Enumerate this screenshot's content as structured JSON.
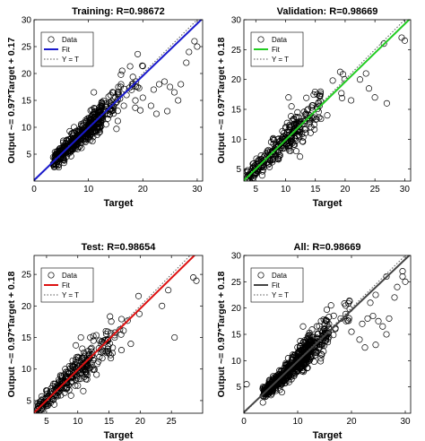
{
  "chart_data": [
    {
      "type": "scatter",
      "title": "Training: R=0.98672",
      "xlabel": "Target",
      "ylabel": "Output ~= 0.97*Target + 0.17",
      "xlim": [
        0,
        31
      ],
      "ylim": [
        0,
        30
      ],
      "xticks": [
        0,
        10,
        20,
        30
      ],
      "yticks": [
        5,
        10,
        15,
        20,
        25,
        30
      ],
      "fit": {
        "slope": 0.97,
        "intercept": 0.17,
        "color": "#1a1acc"
      },
      "legend": {
        "position": "top-left",
        "entries": [
          "Data",
          "Fit",
          "Y = T"
        ]
      },
      "outliers": [
        [
          15.5,
          17.5
        ],
        [
          16.2,
          20.5
        ],
        [
          17,
          16
        ],
        [
          18,
          18
        ],
        [
          19,
          17.5
        ],
        [
          20,
          15.5
        ],
        [
          21.5,
          14
        ],
        [
          22,
          17
        ],
        [
          23,
          18
        ],
        [
          24,
          18.5
        ],
        [
          25,
          17.5
        ],
        [
          25.8,
          16.5
        ],
        [
          26.5,
          15
        ],
        [
          24.5,
          13
        ],
        [
          27,
          18
        ],
        [
          22.5,
          12.5
        ],
        [
          28.5,
          24
        ],
        [
          29.5,
          26
        ],
        [
          30,
          25
        ],
        [
          28,
          22
        ],
        [
          14,
          13.5
        ],
        [
          15,
          14.5
        ],
        [
          16.5,
          14
        ],
        [
          11,
          16.5
        ]
      ]
    },
    {
      "type": "scatter",
      "title": "Validation: R=0.98669",
      "xlabel": "Target",
      "ylabel": "Output ~= 0.97*Target + 0.18",
      "xlim": [
        3,
        31
      ],
      "ylim": [
        3,
        30
      ],
      "xticks": [
        5,
        10,
        15,
        20,
        25,
        30
      ],
      "yticks": [
        5,
        10,
        15,
        20,
        25,
        30
      ],
      "fit": {
        "slope": 0.97,
        "intercept": 0.18,
        "color": "#22cc22"
      },
      "legend": {
        "position": "top-left",
        "entries": [
          "Data",
          "Fit",
          "Y = T"
        ]
      },
      "outliers": [
        [
          26.5,
          26
        ],
        [
          29.5,
          27
        ],
        [
          30,
          26.5
        ],
        [
          23.5,
          21
        ],
        [
          22.5,
          20
        ],
        [
          25,
          17
        ],
        [
          24,
          18.5
        ],
        [
          21,
          16.5
        ],
        [
          15.5,
          16
        ],
        [
          13.5,
          14
        ],
        [
          14.5,
          13.5
        ],
        [
          12,
          14.5
        ],
        [
          10.5,
          17
        ],
        [
          11,
          15.5
        ],
        [
          17,
          14
        ],
        [
          27,
          16
        ]
      ]
    },
    {
      "type": "scatter",
      "title": "Test: R=0.98654",
      "xlabel": "Target",
      "ylabel": "Output ~= 0.97*Target + 0.18",
      "xlim": [
        3,
        30
      ],
      "ylim": [
        3,
        28
      ],
      "xticks": [
        5,
        10,
        15,
        20,
        25
      ],
      "yticks": [
        5,
        10,
        15,
        20,
        25
      ],
      "fit": {
        "slope": 0.97,
        "intercept": 0.18,
        "color": "#dd1111"
      },
      "legend": {
        "position": "top-left",
        "entries": [
          "Data",
          "Fit",
          "Y = T"
        ]
      },
      "outliers": [
        [
          28.5,
          24.5
        ],
        [
          29,
          24
        ],
        [
          24.5,
          22.5
        ],
        [
          14.5,
          16
        ],
        [
          13.5,
          14.5
        ],
        [
          12,
          15
        ],
        [
          10.5,
          15
        ],
        [
          8,
          10
        ],
        [
          18.5,
          14
        ],
        [
          17,
          13
        ],
        [
          25.5,
          15
        ],
        [
          23.5,
          20
        ]
      ]
    },
    {
      "type": "scatter",
      "title": "All: R=0.98669",
      "xlabel": "Target",
      "ylabel": "Output ~= 0.97*Target + 0.18",
      "xlim": [
        0,
        31
      ],
      "ylim": [
        0,
        30
      ],
      "xticks": [
        0,
        10,
        20,
        30
      ],
      "yticks": [
        5,
        10,
        15,
        20,
        25,
        30
      ],
      "fit": {
        "slope": 0.97,
        "intercept": 0.18,
        "color": "#444444"
      },
      "legend": {
        "position": "top-left",
        "entries": [
          "Data",
          "Fit",
          "Y = T"
        ]
      },
      "outliers": [
        [
          15.5,
          17.5
        ],
        [
          16.2,
          20.5
        ],
        [
          17,
          16
        ],
        [
          18,
          18
        ],
        [
          19,
          17.5
        ],
        [
          20,
          15.5
        ],
        [
          21.5,
          14
        ],
        [
          22,
          17
        ],
        [
          23,
          18
        ],
        [
          24,
          18.5
        ],
        [
          25,
          17.5
        ],
        [
          25.8,
          16.5
        ],
        [
          26.5,
          15
        ],
        [
          24.5,
          13
        ],
        [
          27,
          18
        ],
        [
          22.5,
          12.5
        ],
        [
          28.5,
          24
        ],
        [
          29.5,
          26
        ],
        [
          30,
          25
        ],
        [
          28,
          22
        ],
        [
          26.5,
          26
        ],
        [
          29.5,
          27
        ],
        [
          24.5,
          22.5
        ],
        [
          23.5,
          21
        ],
        [
          0.5,
          5.5
        ],
        [
          14,
          13.5
        ],
        [
          11,
          16.5
        ]
      ]
    }
  ]
}
